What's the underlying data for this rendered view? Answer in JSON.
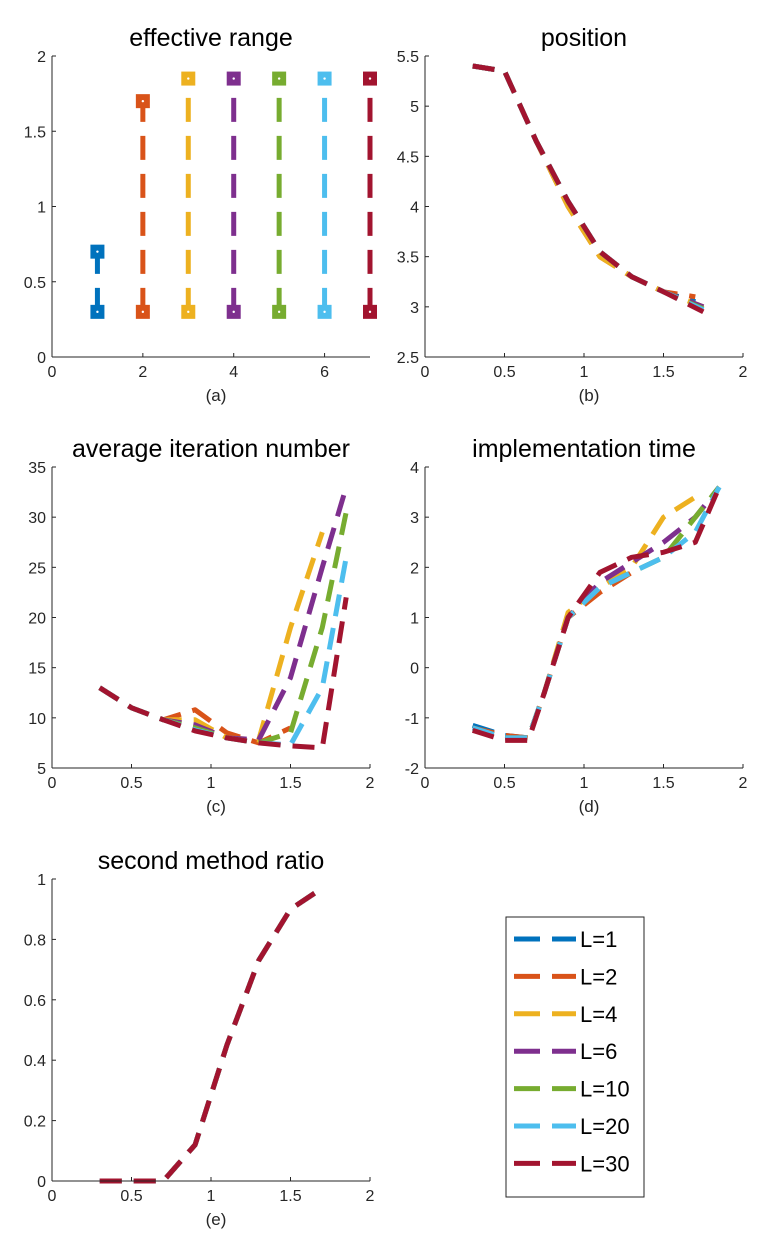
{
  "colors": {
    "L=1": "#0072BD",
    "L=2": "#D95319",
    "L=4": "#EDB120",
    "L=6": "#7E2F8E",
    "L=10": "#77AC30",
    "L=20": "#4DBEEE",
    "L=30": "#A2142F"
  },
  "legend": {
    "placement": "bottom-right",
    "entries": [
      "L=1",
      "L=2",
      "L=4",
      "L=6",
      "L=10",
      "L=20",
      "L=30"
    ]
  },
  "chart_data": [
    {
      "id": "a",
      "type": "scatter",
      "title": "effective range",
      "xlabel": "(a)",
      "xlim": [
        0,
        7
      ],
      "ylim": [
        0,
        2
      ],
      "xticks": [
        0,
        2,
        4,
        6
      ],
      "yticks": [
        0,
        0.5,
        1,
        1.5,
        2
      ],
      "xtick_labels": [
        "0",
        "2",
        "4",
        "6"
      ],
      "ytick_labels": [
        "0",
        "0.5",
        "1",
        "1.5",
        "2"
      ],
      "series": [
        {
          "name": "L=1",
          "x": 1,
          "low": 0.3,
          "high": 0.7
        },
        {
          "name": "L=2",
          "x": 2,
          "low": 0.3,
          "high": 1.7
        },
        {
          "name": "L=4",
          "x": 3,
          "low": 0.3,
          "high": 1.85
        },
        {
          "name": "L=6",
          "x": 4,
          "low": 0.3,
          "high": 1.85
        },
        {
          "name": "L=10",
          "x": 5,
          "low": 0.3,
          "high": 1.85
        },
        {
          "name": "L=20",
          "x": 6,
          "low": 0.3,
          "high": 1.85
        },
        {
          "name": "L=30",
          "x": 7,
          "low": 0.3,
          "high": 1.85
        }
      ]
    },
    {
      "id": "b",
      "type": "line",
      "title": "position",
      "xlabel": "(b)",
      "xlim": [
        0,
        2
      ],
      "ylim": [
        2.5,
        5.5
      ],
      "xticks": [
        0,
        0.5,
        1,
        1.5,
        2
      ],
      "yticks": [
        2.5,
        3,
        3.5,
        4,
        4.5,
        5,
        5.5
      ],
      "xtick_labels": [
        "0",
        "0.5",
        "1",
        "1.5",
        "2"
      ],
      "ytick_labels": [
        "2.5",
        "3",
        "3.5",
        "4",
        "4.5",
        "5",
        "5.5"
      ],
      "series": [
        {
          "name": "L=1",
          "x": [
            0.3,
            0.5,
            0.7,
            0.9,
            1.1,
            1.3,
            1.5,
            1.7
          ],
          "y": [
            5.4,
            5.35,
            4.65,
            4.05,
            3.55,
            3.3,
            3.15,
            3.05
          ]
        },
        {
          "name": "L=2",
          "x": [
            0.3,
            0.5,
            0.7,
            0.9,
            1.1,
            1.3,
            1.5,
            1.7
          ],
          "y": [
            5.4,
            5.35,
            4.65,
            4.0,
            3.5,
            3.3,
            3.15,
            3.1
          ]
        },
        {
          "name": "L=4",
          "x": [
            0.3,
            0.5,
            0.7,
            0.9,
            1.1,
            1.3,
            1.5,
            1.75
          ],
          "y": [
            5.4,
            5.35,
            4.65,
            4.0,
            3.5,
            3.3,
            3.15,
            3.0
          ]
        },
        {
          "name": "L=6",
          "x": [
            0.3,
            0.5,
            0.7,
            0.9,
            1.1,
            1.3,
            1.5,
            1.75
          ],
          "y": [
            5.4,
            5.35,
            4.65,
            4.05,
            3.55,
            3.3,
            3.15,
            3.0
          ]
        },
        {
          "name": "L=10",
          "x": [
            0.3,
            0.5,
            0.7,
            0.9,
            1.1,
            1.3,
            1.5,
            1.75
          ],
          "y": [
            5.4,
            5.35,
            4.65,
            4.05,
            3.55,
            3.3,
            3.15,
            2.98
          ]
        },
        {
          "name": "L=20",
          "x": [
            0.3,
            0.5,
            0.7,
            0.9,
            1.1,
            1.3,
            1.5,
            1.75
          ],
          "y": [
            5.4,
            5.35,
            4.65,
            4.05,
            3.55,
            3.3,
            3.15,
            2.97
          ]
        },
        {
          "name": "L=30",
          "x": [
            0.3,
            0.5,
            0.7,
            0.9,
            1.1,
            1.3,
            1.5,
            1.75
          ],
          "y": [
            5.4,
            5.35,
            4.65,
            4.05,
            3.55,
            3.3,
            3.15,
            2.95
          ]
        }
      ]
    },
    {
      "id": "c",
      "type": "line",
      "title": "average iteration number",
      "xlabel": "(c)",
      "xlim": [
        0,
        2
      ],
      "ylim": [
        5,
        35
      ],
      "xticks": [
        0,
        0.5,
        1,
        1.5,
        2
      ],
      "yticks": [
        5,
        10,
        15,
        20,
        25,
        30,
        35
      ],
      "xtick_labels": [
        "0",
        "0.5",
        "1",
        "1.5",
        "2"
      ],
      "ytick_labels": [
        "5",
        "10",
        "15",
        "20",
        "25",
        "30",
        "35"
      ],
      "series": [
        {
          "name": "L=1",
          "x": [
            0.3,
            0.5,
            0.7
          ],
          "y": [
            13.0,
            11.0,
            9.8
          ]
        },
        {
          "name": "L=2",
          "x": [
            0.3,
            0.5,
            0.7,
            0.9,
            1.1,
            1.3,
            1.5
          ],
          "y": [
            13.0,
            11.0,
            9.8,
            10.8,
            8.5,
            7.5,
            9.0
          ]
        },
        {
          "name": "L=4",
          "x": [
            0.3,
            0.5,
            0.7,
            0.9,
            1.1,
            1.3,
            1.5,
            1.7
          ],
          "y": [
            13.0,
            11.0,
            9.8,
            9.8,
            8.0,
            7.8,
            19.0,
            28.5
          ]
        },
        {
          "name": "L=6",
          "x": [
            0.3,
            0.5,
            0.7,
            0.9,
            1.1,
            1.3,
            1.5,
            1.7,
            1.85
          ],
          "y": [
            13.0,
            11.0,
            9.8,
            9.3,
            8.0,
            7.8,
            14.0,
            25.0,
            33.0
          ]
        },
        {
          "name": "L=10",
          "x": [
            0.3,
            0.5,
            0.7,
            0.9,
            1.1,
            1.3,
            1.5,
            1.7,
            1.85
          ],
          "y": [
            13.0,
            11.0,
            9.8,
            9.0,
            8.0,
            7.5,
            8.5,
            19.0,
            30.5
          ]
        },
        {
          "name": "L=20",
          "x": [
            0.3,
            0.5,
            0.7,
            0.9,
            1.1,
            1.3,
            1.5,
            1.7,
            1.85
          ],
          "y": [
            13.0,
            11.0,
            9.8,
            8.8,
            8.0,
            7.5,
            7.3,
            13.0,
            26.0
          ]
        },
        {
          "name": "L=30",
          "x": [
            0.3,
            0.5,
            0.7,
            0.9,
            1.1,
            1.3,
            1.5,
            1.7,
            1.85
          ],
          "y": [
            13.0,
            11.0,
            9.8,
            8.7,
            8.0,
            7.5,
            7.2,
            7.0,
            22.0
          ]
        }
      ]
    },
    {
      "id": "d",
      "type": "line",
      "title": "implementation time",
      "xlabel": "(d)",
      "xlim": [
        0,
        2
      ],
      "ylim": [
        -2,
        4
      ],
      "xticks": [
        0,
        0.5,
        1,
        1.5,
        2
      ],
      "yticks": [
        -2,
        -1,
        0,
        1,
        2,
        3,
        4
      ],
      "xtick_labels": [
        "0",
        "0.5",
        "1",
        "1.5",
        "2"
      ],
      "ytick_labels": [
        "-2",
        "-1",
        "0",
        "1",
        "2",
        "3",
        "4"
      ],
      "series": [
        {
          "name": "L=1",
          "x": [
            0.3,
            0.5,
            0.65
          ],
          "y": [
            -1.15,
            -1.35,
            -1.4
          ]
        },
        {
          "name": "L=2",
          "x": [
            0.3,
            0.5,
            0.65,
            0.75,
            0.9,
            1.1,
            1.3
          ],
          "y": [
            -1.2,
            -1.35,
            -1.4,
            -0.5,
            1.0,
            1.5,
            1.9
          ]
        },
        {
          "name": "L=4",
          "x": [
            0.3,
            0.5,
            0.65,
            0.75,
            0.9,
            1.1,
            1.3,
            1.5,
            1.7
          ],
          "y": [
            -1.2,
            -1.4,
            -1.4,
            -0.5,
            1.1,
            1.6,
            2.0,
            3.0,
            3.4
          ]
        },
        {
          "name": "L=6",
          "x": [
            0.3,
            0.5,
            0.65,
            0.75,
            0.9,
            1.1,
            1.3,
            1.5,
            1.7,
            1.85
          ],
          "y": [
            -1.2,
            -1.4,
            -1.4,
            -0.5,
            1.0,
            1.7,
            2.1,
            2.5,
            3.0,
            3.6
          ]
        },
        {
          "name": "L=10",
          "x": [
            0.3,
            0.5,
            0.65,
            0.75,
            0.9,
            1.1,
            1.3,
            1.5,
            1.7,
            1.85
          ],
          "y": [
            -1.2,
            -1.4,
            -1.4,
            -0.5,
            1.0,
            1.6,
            1.9,
            2.2,
            3.0,
            3.6
          ]
        },
        {
          "name": "L=20",
          "x": [
            0.3,
            0.5,
            0.65,
            0.75,
            0.9,
            1.1,
            1.3,
            1.5,
            1.7,
            1.85
          ],
          "y": [
            -1.2,
            -1.4,
            -1.4,
            -0.5,
            1.0,
            1.6,
            1.9,
            2.2,
            2.7,
            3.6
          ]
        },
        {
          "name": "L=30",
          "x": [
            0.3,
            0.5,
            0.65,
            0.75,
            0.9,
            1.1,
            1.3,
            1.5,
            1.7,
            1.85
          ],
          "y": [
            -1.25,
            -1.45,
            -1.45,
            -0.5,
            1.0,
            1.9,
            2.2,
            2.3,
            2.5,
            3.6
          ]
        }
      ]
    },
    {
      "id": "e",
      "type": "line",
      "title": "second method ratio",
      "xlabel": "(e)",
      "xlim": [
        0,
        2
      ],
      "ylim": [
        0,
        1
      ],
      "xticks": [
        0,
        0.5,
        1,
        1.5,
        2
      ],
      "yticks": [
        0,
        0.2,
        0.4,
        0.6,
        0.8,
        1
      ],
      "xtick_labels": [
        "0",
        "0.5",
        "1",
        "1.5",
        "2"
      ],
      "ytick_labels": [
        "0",
        "0.2",
        "0.4",
        "0.6",
        "0.8",
        "1"
      ],
      "series": [
        {
          "name": "L=1",
          "x": [
            0.3,
            0.5,
            0.7
          ],
          "y": [
            0.0,
            0.0,
            0.0
          ]
        },
        {
          "name": "L=2",
          "x": [
            0.3,
            0.5,
            0.7,
            0.9,
            1.1,
            1.3,
            1.5,
            1.7
          ],
          "y": [
            0.0,
            0.0,
            0.0,
            0.12,
            0.45,
            0.73,
            0.9,
            0.97
          ]
        },
        {
          "name": "L=4",
          "x": [
            0.3,
            0.5,
            0.7,
            0.9,
            1.1,
            1.3,
            1.5,
            1.7
          ],
          "y": [
            0.0,
            0.0,
            0.0,
            0.12,
            0.45,
            0.73,
            0.9,
            0.97
          ]
        },
        {
          "name": "L=6",
          "x": [
            0.3,
            0.5,
            0.7,
            0.9,
            1.1,
            1.3,
            1.5,
            1.7
          ],
          "y": [
            0.0,
            0.0,
            0.0,
            0.12,
            0.45,
            0.73,
            0.9,
            0.97
          ]
        },
        {
          "name": "L=10",
          "x": [
            0.3,
            0.5,
            0.7,
            0.9,
            1.1,
            1.3,
            1.5,
            1.7
          ],
          "y": [
            0.0,
            0.0,
            0.0,
            0.12,
            0.45,
            0.73,
            0.9,
            0.97
          ]
        },
        {
          "name": "L=20",
          "x": [
            0.3,
            0.5,
            0.7,
            0.9,
            1.1,
            1.3,
            1.5,
            1.7
          ],
          "y": [
            0.0,
            0.0,
            0.0,
            0.12,
            0.45,
            0.73,
            0.9,
            0.97
          ]
        },
        {
          "name": "L=30",
          "x": [
            0.3,
            0.5,
            0.7,
            0.9,
            1.1,
            1.3,
            1.5,
            1.7
          ],
          "y": [
            0.0,
            0.0,
            0.0,
            0.12,
            0.45,
            0.73,
            0.9,
            0.97
          ]
        }
      ]
    }
  ]
}
